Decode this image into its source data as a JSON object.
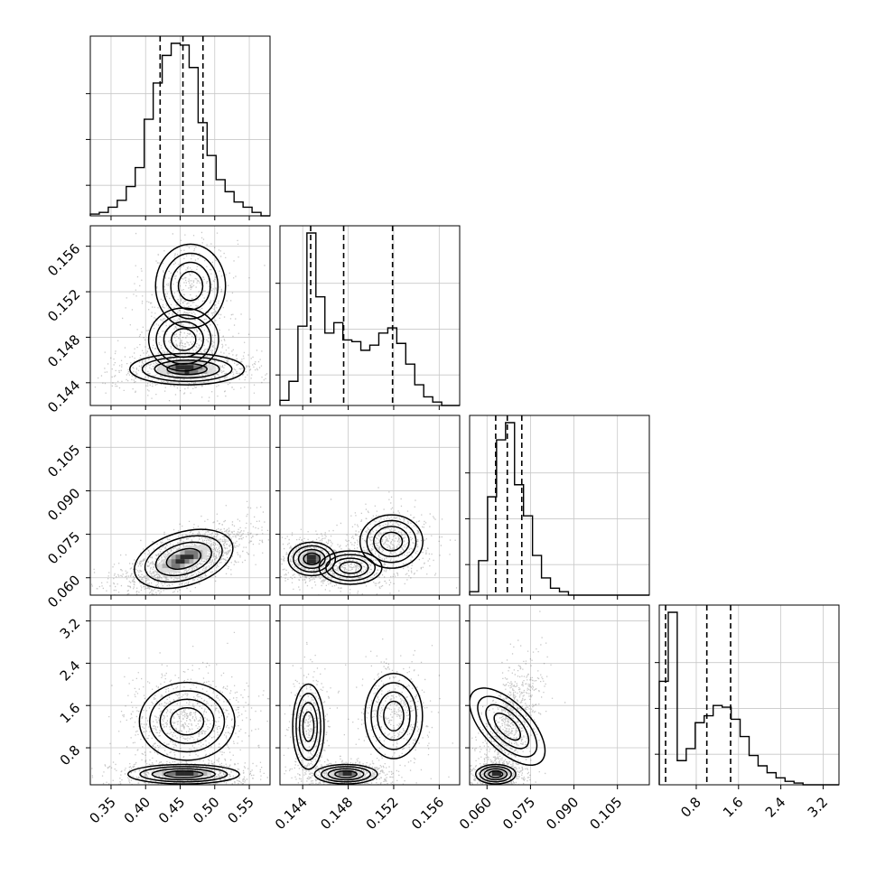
{
  "chart_data": {
    "type": "corner",
    "parameters": [
      {
        "range": [
          0.32,
          0.58
        ],
        "ticks": [
          "0.35",
          "0.40",
          "0.45",
          "0.50",
          "0.55"
        ],
        "tick_values": [
          0.35,
          0.4,
          0.45,
          0.5,
          0.55
        ],
        "quantiles": [
          0.421,
          0.454,
          0.483
        ]
      },
      {
        "range": [
          0.142,
          0.1578
        ],
        "ticks": [
          "0.144",
          "0.148",
          "0.152",
          "0.156"
        ],
        "tick_values": [
          0.144,
          0.148,
          0.152,
          0.156
        ],
        "quantiles": [
          0.1447,
          0.1476,
          0.1519
        ]
      },
      {
        "range": [
          0.054,
          0.116
        ],
        "ticks": [
          "0.060",
          "0.075",
          "0.090",
          "0.105"
        ],
        "tick_values": [
          0.06,
          0.075,
          0.09,
          0.105
        ],
        "quantiles": [
          0.063,
          0.067,
          0.072
        ]
      },
      {
        "range": [
          0.1,
          3.5
        ],
        "ticks": [
          "0.8",
          "1.6",
          "2.4",
          "3.2"
        ],
        "tick_values": [
          0.8,
          1.6,
          2.4,
          3.2
        ],
        "quantiles": [
          0.22,
          1.0,
          1.45
        ]
      }
    ],
    "histograms": [
      {
        "counts": [
          1,
          2,
          5,
          9,
          17,
          28,
          56,
          77,
          93,
          100,
          99,
          86,
          54,
          35,
          21,
          14,
          8,
          5,
          2,
          0
        ]
      },
      {
        "counts": [
          3,
          14,
          46,
          100,
          63,
          42,
          48,
          38,
          37,
          32,
          35,
          42,
          45,
          36,
          24,
          12,
          5,
          2,
          0,
          0
        ]
      },
      {
        "counts": [
          2,
          20,
          57,
          90,
          100,
          64,
          46,
          23,
          10,
          4,
          2,
          0,
          0,
          0,
          0,
          0,
          0,
          0,
          0,
          0
        ]
      },
      {
        "counts": [
          60,
          100,
          14,
          21,
          36,
          40,
          46,
          45,
          38,
          28,
          17,
          11,
          7,
          4,
          2,
          1,
          0,
          0,
          0,
          0
        ]
      }
    ],
    "pairs": [
      {
        "row": 1,
        "col": 0,
        "components": [
          {
            "mx": 0.465,
            "my": 0.1525,
            "sx": 0.022,
            "sy": 0.0016,
            "w": 0.25,
            "rho": 0
          },
          {
            "mx": 0.455,
            "my": 0.1478,
            "sx": 0.022,
            "sy": 0.0012,
            "w": 0.25,
            "rho": 0
          },
          {
            "mx": 0.46,
            "my": 0.1452,
            "sx": 0.036,
            "sy": 0.0006,
            "w": 0.5,
            "rho": 0
          }
        ]
      },
      {
        "row": 2,
        "col": 0,
        "components": [
          {
            "mx": 0.455,
            "my": 0.0665,
            "sx": 0.032,
            "sy": 0.004,
            "w": 1,
            "rho": 0.65
          }
        ]
      },
      {
        "row": 2,
        "col": 1,
        "components": [
          {
            "mx": 0.1448,
            "my": 0.0665,
            "sx": 0.0009,
            "sy": 0.0025,
            "w": 0.4,
            "rho": 0
          },
          {
            "mx": 0.1482,
            "my": 0.0635,
            "sx": 0.0012,
            "sy": 0.0025,
            "w": 0.25,
            "rho": 0
          },
          {
            "mx": 0.1518,
            "my": 0.0725,
            "sx": 0.0012,
            "sy": 0.004,
            "w": 0.35,
            "rho": 0
          }
        ]
      },
      {
        "row": 3,
        "col": 0,
        "components": [
          {
            "mx": 0.46,
            "my": 1.3,
            "sx": 0.03,
            "sy": 0.32,
            "w": 0.55,
            "rho": 0
          },
          {
            "mx": 0.455,
            "my": 0.3,
            "sx": 0.035,
            "sy": 0.08,
            "w": 0.45,
            "rho": 0
          }
        ]
      },
      {
        "row": 3,
        "col": 1,
        "components": [
          {
            "mx": 0.1445,
            "my": 1.2,
            "sx": 0.0006,
            "sy": 0.35,
            "w": 0.25,
            "rho": 0
          },
          {
            "mx": 0.1478,
            "my": 0.3,
            "sx": 0.0012,
            "sy": 0.08,
            "w": 0.45,
            "rho": 0
          },
          {
            "mx": 0.152,
            "my": 1.4,
            "sx": 0.0011,
            "sy": 0.35,
            "w": 0.3,
            "rho": 0
          }
        ]
      },
      {
        "row": 3,
        "col": 2,
        "components": [
          {
            "mx": 0.067,
            "my": 1.2,
            "sx": 0.0035,
            "sy": 0.4,
            "w": 0.55,
            "rho": 0.55
          },
          {
            "mx": 0.063,
            "my": 0.3,
            "sx": 0.003,
            "sy": 0.08,
            "w": 0.45,
            "rho": 0
          }
        ]
      }
    ]
  }
}
